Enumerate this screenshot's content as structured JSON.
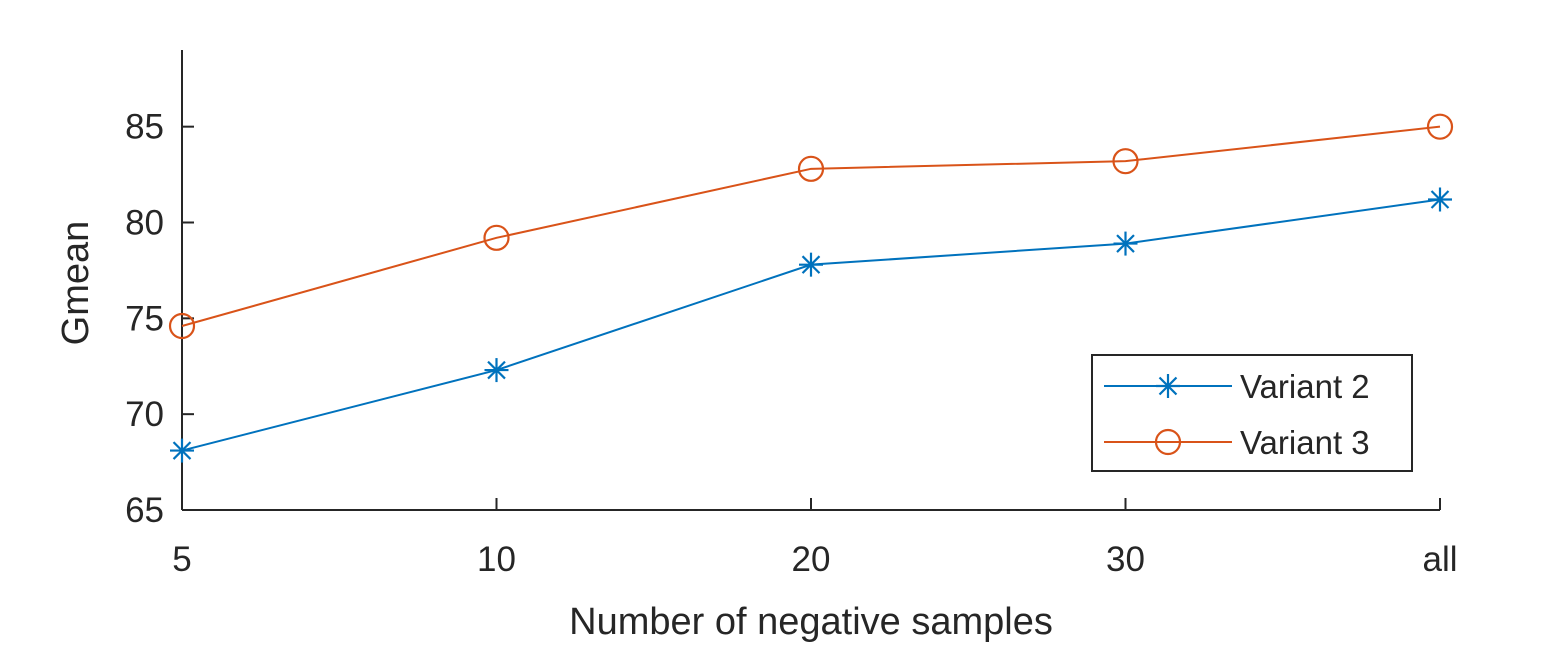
{
  "chart_data": {
    "type": "line",
    "title": "",
    "xlabel": "Number of negative samples",
    "ylabel": "Gmean",
    "categories": [
      "5",
      "10",
      "20",
      "30",
      "all"
    ],
    "ylim": [
      65,
      89
    ],
    "yticks": [
      65,
      70,
      75,
      80,
      85
    ],
    "grid": false,
    "legend_position": "bottom-right",
    "series": [
      {
        "name": "Variant 2",
        "marker": "asterisk",
        "color": "#0072BD",
        "values": [
          68.1,
          72.3,
          77.8,
          78.9,
          81.2
        ]
      },
      {
        "name": "Variant 3",
        "marker": "circle",
        "color": "#D95319",
        "values": [
          74.6,
          79.2,
          82.8,
          83.2,
          85.0
        ]
      }
    ]
  }
}
